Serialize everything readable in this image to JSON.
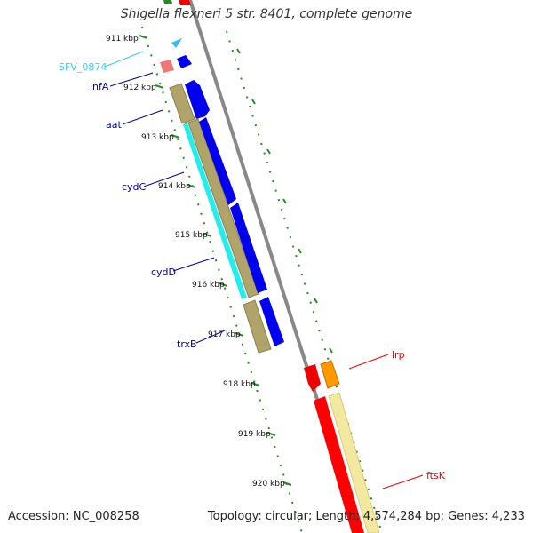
{
  "title": "Shigella flexneri 5 str. 8401, complete genome",
  "accession": "Accession: NC_008258",
  "summary": "Topology: circular; Length: 4,574,284 bp; Genes: 4,233",
  "ruler": [
    "911 kbp",
    "912 kbp",
    "913 kbp",
    "914 kbp",
    "915 kbp",
    "916 kbp",
    "917 kbp",
    "918 kbp",
    "919 kbp",
    "920 kbp"
  ],
  "genes": [
    {
      "name": "SFV_0874",
      "color": "#33ccff"
    },
    {
      "name": "infA",
      "color": "#000099"
    },
    {
      "name": "aat",
      "color": "#000099"
    },
    {
      "name": "cydC",
      "color": "#000099"
    },
    {
      "name": "cydD",
      "color": "#000099"
    },
    {
      "name": "trxB",
      "color": "#000099"
    },
    {
      "name": "lrp",
      "color": "#ee0000"
    },
    {
      "name": "ftsK",
      "color": "#ee0000"
    }
  ],
  "colors": {
    "cds_forward": "#0000ee",
    "gene_olive": "#b0a46a",
    "cyan_feature": "#22eeee",
    "red_feature": "#ff0000",
    "orange_feature": "#ff9900",
    "pale_yellow_feature": "#f3e8a0",
    "pink_feature": "#ee7777",
    "backbone": "#888888",
    "tick_green": "#2a8a2a"
  }
}
